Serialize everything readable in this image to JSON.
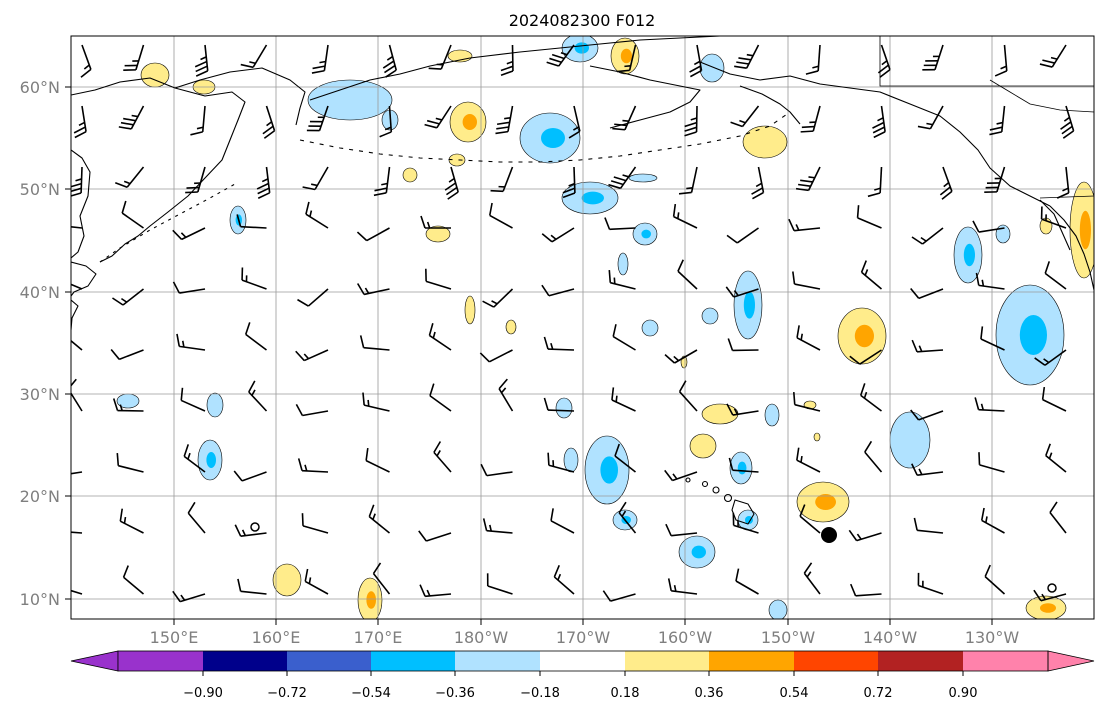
{
  "title": "2024082300 F012",
  "lat_labels": [
    "60°N",
    "50°N",
    "40°N",
    "30°N",
    "20°N",
    "10°N"
  ],
  "lon_labels": [
    "150°E",
    "160°E",
    "170°E",
    "180°W",
    "170°W",
    "160°W",
    "150°W",
    "140°W",
    "130°W"
  ],
  "colorbar": {
    "ticks": [
      "−0.90",
      "−0.72",
      "−0.54",
      "−0.36",
      "−0.18",
      "0.18",
      "0.36",
      "0.54",
      "0.72",
      "0.90"
    ],
    "colors": [
      "#9932cc",
      "#00008b",
      "#3a5fcd",
      "#00bfff",
      "#b0e2ff",
      "#ffffff",
      "#ffec8b",
      "#ffa500",
      "#ff4500",
      "#b22222",
      "#ff82ab"
    ]
  },
  "colors": {
    "pos_light": "#ffec8b",
    "pos_mid": "#ffa500",
    "neg_light": "#b0e2ff",
    "neg_mid": "#00bfff"
  },
  "map": {
    "lon_range": [
      140,
      240
    ],
    "lat_range": [
      8,
      65
    ]
  }
}
